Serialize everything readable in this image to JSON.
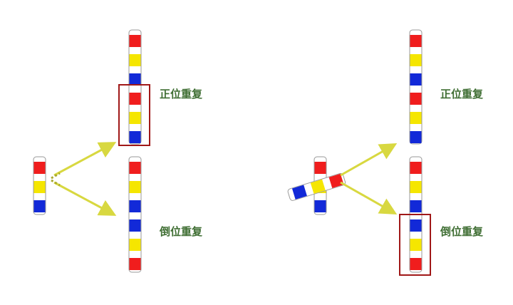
{
  "labels": {
    "left_tandem": "正位重复",
    "left_inverted": "倒位重复",
    "right_tandem": "正位重复",
    "right_inverted": "倒位重复"
  },
  "colors": {
    "red": "#f01d1d",
    "yellow": "#f5e600",
    "blue": "#1229d8",
    "white": "#ffffff",
    "outline": "#9a9a9a",
    "arrow": "#d8d840",
    "highlight_box": "#a01818",
    "label_text": "#3f6e33"
  },
  "segments": {
    "original": [
      "red",
      "yellow",
      "blue"
    ],
    "tandem_duplication": [
      "red",
      "yellow",
      "blue",
      "red",
      "yellow",
      "blue"
    ],
    "inverted_duplication": [
      "red",
      "yellow",
      "blue",
      "blue",
      "yellow",
      "red"
    ]
  }
}
